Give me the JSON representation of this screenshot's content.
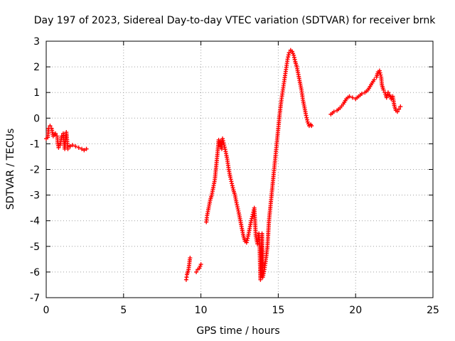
{
  "chart_data": {
    "type": "scatter",
    "title": "Day 197 of 2023, Sidereal Day-to-day VTEC variation (SDTVAR) for receiver brnk",
    "xlabel": "GPS time / hours",
    "ylabel": "SDTVAR / TECUs",
    "xlim": [
      0,
      25
    ],
    "ylim": [
      -7,
      3
    ],
    "x_ticks": [
      "0",
      "5",
      "10",
      "15",
      "20",
      "25"
    ],
    "y_ticks": [
      "-7",
      "-6",
      "-5",
      "-4",
      "-3",
      "-2",
      "-1",
      "0",
      "1",
      "2",
      "3"
    ],
    "grid": true,
    "marker": "+",
    "color": "#ff0000",
    "series": [
      {
        "name": "brnk",
        "segments": [
          [
            [
              0.0,
              -0.8
            ],
            [
              0.1,
              -0.75
            ],
            [
              0.15,
              -0.4
            ],
            [
              0.25,
              -0.3
            ],
            [
              0.35,
              -0.4
            ],
            [
              0.45,
              -0.7
            ],
            [
              0.55,
              -0.65
            ],
            [
              0.6,
              -0.6
            ],
            [
              0.7,
              -0.7
            ],
            [
              0.75,
              -1.0
            ],
            [
              0.8,
              -1.15
            ],
            [
              0.9,
              -1.05
            ],
            [
              1.0,
              -0.7
            ],
            [
              1.1,
              -0.6
            ],
            [
              1.2,
              -1.2
            ],
            [
              1.3,
              -0.55
            ],
            [
              1.4,
              -1.2
            ],
            [
              1.55,
              -1.1
            ],
            [
              1.7,
              -1.05
            ],
            [
              1.9,
              -1.1
            ],
            [
              2.1,
              -1.15
            ],
            [
              2.3,
              -1.2
            ],
            [
              2.45,
              -1.25
            ],
            [
              2.6,
              -1.2
            ]
          ],
          [
            [
              9.05,
              -6.3
            ],
            [
              9.1,
              -6.1
            ],
            [
              9.2,
              -5.9
            ],
            [
              9.3,
              -5.45
            ]
          ],
          [
            [
              9.7,
              -6.0
            ],
            [
              9.8,
              -5.9
            ],
            [
              9.9,
              -5.85
            ],
            [
              10.0,
              -5.7
            ]
          ],
          [
            [
              10.35,
              -4.05
            ],
            [
              10.4,
              -3.8
            ],
            [
              10.5,
              -3.5
            ],
            [
              10.6,
              -3.2
            ],
            [
              10.7,
              -3.0
            ],
            [
              10.8,
              -2.7
            ],
            [
              10.9,
              -2.4
            ],
            [
              11.0,
              -1.8
            ],
            [
              11.1,
              -1.2
            ],
            [
              11.15,
              -0.85
            ],
            [
              11.25,
              -1.1
            ],
            [
              11.3,
              -0.9
            ],
            [
              11.35,
              -1.2
            ],
            [
              11.4,
              -0.8
            ],
            [
              11.5,
              -1.05
            ],
            [
              11.6,
              -1.3
            ],
            [
              11.7,
              -1.6
            ],
            [
              11.8,
              -2.0
            ],
            [
              11.9,
              -2.3
            ],
            [
              12.0,
              -2.55
            ],
            [
              12.1,
              -2.8
            ],
            [
              12.2,
              -3.0
            ],
            [
              12.3,
              -3.3
            ],
            [
              12.45,
              -3.7
            ],
            [
              12.55,
              -4.0
            ],
            [
              12.65,
              -4.3
            ],
            [
              12.75,
              -4.6
            ],
            [
              12.85,
              -4.8
            ],
            [
              12.95,
              -4.85
            ],
            [
              13.05,
              -4.6
            ],
            [
              13.15,
              -4.3
            ],
            [
              13.25,
              -4.0
            ],
            [
              13.35,
              -3.75
            ],
            [
              13.45,
              -3.5
            ],
            [
              13.55,
              -4.6
            ],
            [
              13.65,
              -4.9
            ],
            [
              13.75,
              -4.5
            ],
            [
              13.8,
              -5.1
            ],
            [
              13.85,
              -6.3
            ],
            [
              13.9,
              -5.6
            ],
            [
              13.95,
              -4.5
            ],
            [
              14.0,
              -6.2
            ],
            [
              14.1,
              -5.9
            ],
            [
              14.2,
              -5.5
            ],
            [
              14.3,
              -5.0
            ],
            [
              14.4,
              -4.0
            ],
            [
              14.5,
              -3.4
            ],
            [
              14.6,
              -2.8
            ],
            [
              14.7,
              -2.2
            ],
            [
              14.8,
              -1.6
            ],
            [
              14.9,
              -1.0
            ],
            [
              15.0,
              -0.4
            ],
            [
              15.1,
              0.2
            ],
            [
              15.2,
              0.7
            ],
            [
              15.3,
              1.1
            ],
            [
              15.4,
              1.5
            ],
            [
              15.5,
              1.9
            ],
            [
              15.6,
              2.3
            ],
            [
              15.7,
              2.55
            ],
            [
              15.8,
              2.65
            ],
            [
              15.9,
              2.6
            ],
            [
              16.0,
              2.45
            ],
            [
              16.1,
              2.2
            ],
            [
              16.2,
              2.0
            ],
            [
              16.3,
              1.7
            ],
            [
              16.4,
              1.4
            ],
            [
              16.5,
              1.1
            ],
            [
              16.6,
              0.7
            ],
            [
              16.7,
              0.4
            ],
            [
              16.8,
              0.1
            ],
            [
              16.9,
              -0.15
            ],
            [
              17.0,
              -0.3
            ],
            [
              17.1,
              -0.25
            ],
            [
              17.15,
              -0.3
            ]
          ],
          [
            [
              18.4,
              0.15
            ],
            [
              18.6,
              0.25
            ],
            [
              18.8,
              0.3
            ],
            [
              19.0,
              0.4
            ],
            [
              19.2,
              0.55
            ],
            [
              19.4,
              0.75
            ],
            [
              19.6,
              0.85
            ],
            [
              19.8,
              0.8
            ],
            [
              20.0,
              0.75
            ],
            [
              20.2,
              0.85
            ],
            [
              20.4,
              0.95
            ],
            [
              20.6,
              1.0
            ],
            [
              20.8,
              1.1
            ],
            [
              21.0,
              1.3
            ],
            [
              21.2,
              1.5
            ],
            [
              21.35,
              1.6
            ],
            [
              21.45,
              1.8
            ],
            [
              21.55,
              1.85
            ],
            [
              21.65,
              1.6
            ],
            [
              21.7,
              1.3
            ],
            [
              21.8,
              1.1
            ],
            [
              21.9,
              1.0
            ],
            [
              22.0,
              0.8
            ],
            [
              22.1,
              1.0
            ],
            [
              22.2,
              0.9
            ],
            [
              22.3,
              0.75
            ],
            [
              22.4,
              0.85
            ],
            [
              22.5,
              0.5
            ],
            [
              22.6,
              0.3
            ],
            [
              22.7,
              0.25
            ],
            [
              22.8,
              0.35
            ],
            [
              22.9,
              0.45
            ]
          ]
        ]
      }
    ]
  }
}
